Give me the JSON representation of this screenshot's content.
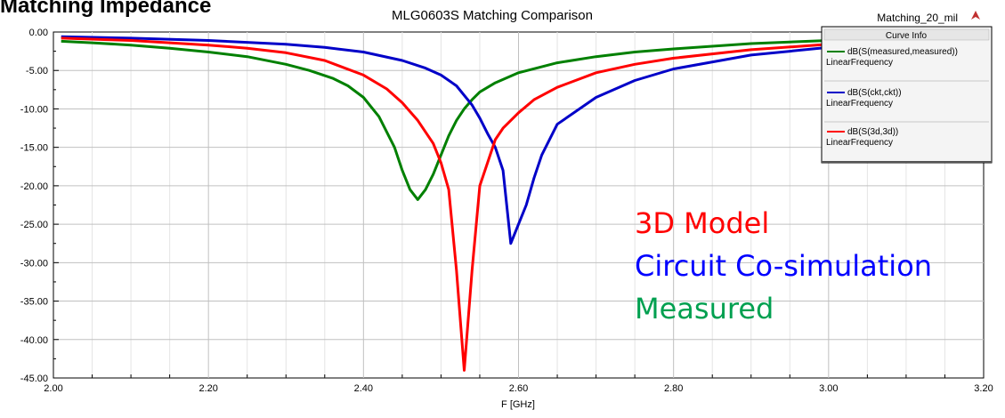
{
  "top_left_text": "Matching Impedance",
  "top_right_label": "Matching_20_mil",
  "legend": {
    "title": "Curve Info",
    "entries": [
      {
        "line1": "dB(S(measured,measured))",
        "line2": "LinearFrequency",
        "color": "#008000"
      },
      {
        "line1": "dB(S(ckt,ckt))",
        "line2": "LinearFrequency",
        "color": "#0000c8"
      },
      {
        "line1": "dB(S(3d,3d))",
        "line2": "LinearFrequency",
        "color": "#ff0000"
      }
    ]
  },
  "annotations": [
    {
      "text": "3D Model",
      "color": "#ff0000"
    },
    {
      "text": "Circuit Co-simulation",
      "color": "#0000ff"
    },
    {
      "text": "Measured",
      "color": "#00a050"
    }
  ],
  "chart_data": {
    "type": "line",
    "title": "MLG0603S Matching Comparison",
    "xlabel": "F [GHz]",
    "ylabel": "",
    "xlim": [
      2.0,
      3.2
    ],
    "ylim": [
      -45,
      0
    ],
    "xticks": [
      "2.00",
      "2.20",
      "2.40",
      "2.60",
      "2.80",
      "3.00",
      "3.20"
    ],
    "yticks": [
      "0.00",
      "-5.00",
      "-10.00",
      "-15.00",
      "-20.00",
      "-25.00",
      "-30.00",
      "-35.00",
      "-40.00",
      "-45.00"
    ],
    "grid": true,
    "legend_position": "top-right",
    "series": [
      {
        "name": "dB(S(measured,measured))",
        "color": "#008000",
        "x": [
          2.01,
          2.05,
          2.1,
          2.15,
          2.2,
          2.25,
          2.3,
          2.33,
          2.36,
          2.38,
          2.4,
          2.42,
          2.44,
          2.45,
          2.46,
          2.47,
          2.48,
          2.49,
          2.5,
          2.51,
          2.52,
          2.53,
          2.54,
          2.55,
          2.57,
          2.6,
          2.65,
          2.7,
          2.75,
          2.8,
          2.9,
          3.0,
          3.1,
          3.2
        ],
        "y": [
          -1.2,
          -1.4,
          -1.7,
          -2.1,
          -2.6,
          -3.2,
          -4.2,
          -5.0,
          -6.0,
          -7.0,
          -8.5,
          -11.0,
          -15.0,
          -18.0,
          -20.5,
          -21.8,
          -20.5,
          -18.5,
          -16.0,
          -13.5,
          -11.5,
          -10.0,
          -8.8,
          -7.8,
          -6.6,
          -5.3,
          -4.0,
          -3.2,
          -2.6,
          -2.2,
          -1.5,
          -1.1,
          -0.8,
          -0.6
        ]
      },
      {
        "name": "dB(S(ckt,ckt))",
        "color": "#0000c8",
        "x": [
          2.01,
          2.1,
          2.2,
          2.3,
          2.35,
          2.4,
          2.45,
          2.48,
          2.5,
          2.52,
          2.54,
          2.55,
          2.56,
          2.57,
          2.58,
          2.59,
          2.6,
          2.61,
          2.62,
          2.63,
          2.65,
          2.7,
          2.75,
          2.8,
          2.9,
          3.0,
          3.1,
          3.2
        ],
        "y": [
          -0.6,
          -0.8,
          -1.1,
          -1.6,
          -2.0,
          -2.6,
          -3.7,
          -4.7,
          -5.6,
          -7.0,
          -9.5,
          -11.2,
          -13.2,
          -15.0,
          -18.0,
          -27.5,
          -25.0,
          -22.5,
          -19.0,
          -16.0,
          -12.0,
          -8.5,
          -6.3,
          -4.8,
          -3.0,
          -2.0,
          -1.3,
          -0.9
        ]
      },
      {
        "name": "dB(S(3d,3d))",
        "color": "#ff0000",
        "x": [
          2.01,
          2.1,
          2.2,
          2.25,
          2.3,
          2.35,
          2.4,
          2.43,
          2.45,
          2.47,
          2.49,
          2.5,
          2.51,
          2.52,
          2.53,
          2.54,
          2.55,
          2.56,
          2.57,
          2.58,
          2.6,
          2.62,
          2.65,
          2.7,
          2.75,
          2.8,
          2.9,
          3.0,
          3.1,
          3.2
        ],
        "y": [
          -0.8,
          -1.1,
          -1.7,
          -2.1,
          -2.7,
          -3.7,
          -5.6,
          -7.4,
          -9.2,
          -11.5,
          -14.5,
          -17.0,
          -20.5,
          -31.0,
          -44.0,
          -31.0,
          -20.0,
          -17.0,
          -14.0,
          -12.5,
          -10.5,
          -8.8,
          -7.2,
          -5.3,
          -4.2,
          -3.4,
          -2.3,
          -1.6,
          -1.1,
          -0.8
        ]
      }
    ]
  }
}
